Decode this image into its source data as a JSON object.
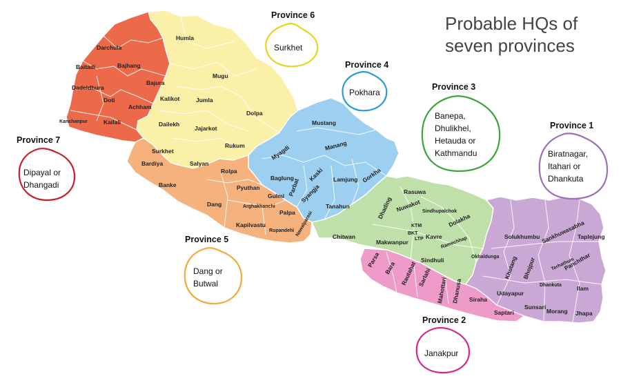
{
  "title": {
    "line1": "Probable HQs of",
    "line2": "seven provinces"
  },
  "colors": {
    "province1": "#c9a8d6",
    "province2": "#ef9bc9",
    "province3": "#bfe0a8",
    "province4": "#9ccff0",
    "province5": "#f5b27c",
    "province6": "#fbf0a8",
    "province7": "#ec6a4a"
  },
  "provinces": [
    {
      "label": "Province 1",
      "hq_lines": [
        "Biratnagar,",
        "Itahari or",
        "Dhankuta"
      ],
      "bubble_color": "#9b6fb3"
    },
    {
      "label": "Province 2",
      "hq_lines": [
        "Janakpur"
      ],
      "bubble_color": "#d3268f"
    },
    {
      "label": "Province 3",
      "hq_lines": [
        "Banepa,",
        "Dhulikhel,",
        "Hetauda or",
        "Kathmandu"
      ],
      "bubble_color": "#3aa53a"
    },
    {
      "label": "Province 4",
      "hq_lines": [
        "Pokhara"
      ],
      "bubble_color": "#2a9ad8"
    },
    {
      "label": "Province 5",
      "hq_lines": [
        "Dang or",
        "Butwal"
      ],
      "bubble_color": "#f2a83a"
    },
    {
      "label": "Province 6",
      "hq_lines": [
        "Surkhet"
      ],
      "bubble_color": "#e8d51a"
    },
    {
      "label": "Province 7",
      "hq_lines": [
        "Dipayal or",
        "Dhangadi"
      ],
      "bubble_color": "#c8202a"
    }
  ],
  "districts": {
    "p7": [
      "Darchula",
      "Baitadi",
      "Bajhang",
      "Bajura",
      "Dadeldhura",
      "Doti",
      "Achham",
      "Kanchanpur",
      "Kailali"
    ],
    "p6": [
      "Humla",
      "Mugu",
      "Kalikot",
      "Jumla",
      "Dolpa",
      "Dailekh",
      "Jajarkot",
      "Surkhet",
      "Rukum",
      "Salyan"
    ],
    "p5": [
      "Bardiya",
      "Banke",
      "Rolpa",
      "Pyuthan",
      "Dang",
      "Gulmi",
      "Arghakhanchi",
      "Palpa",
      "Kapilvastu",
      "Rupandehi",
      "Nawalparasi"
    ],
    "p4": [
      "Mustang",
      "Myagdi",
      "Manang",
      "Baglung",
      "Parbat",
      "Kaski",
      "Lamjung",
      "Gorkha",
      "Syangja",
      "Tanahun"
    ],
    "p3": [
      "Rasuwa",
      "Dhading",
      "Nuwakot",
      "Sindhupalchok",
      "KTM",
      "BKT",
      "LTP",
      "Kavre",
      "Dolakha",
      "Ramechhap",
      "Chitwan",
      "Makwanpur",
      "Sindhuli"
    ],
    "p2": [
      "Parsa",
      "Bara",
      "Rautahat",
      "Sarlahi",
      "Mahottari",
      "Dhanusa",
      "Siraha",
      "Saptari"
    ],
    "p1": [
      "Solukhumbu",
      "Sankhuwasabha",
      "Taplejung",
      "Okhaldunga",
      "Khotang",
      "Bhojpur",
      "Terhathum",
      "Panchthar",
      "Dhankuta",
      "Ilam",
      "Udayapur",
      "Sunsari",
      "Morang",
      "Jhapa"
    ]
  }
}
